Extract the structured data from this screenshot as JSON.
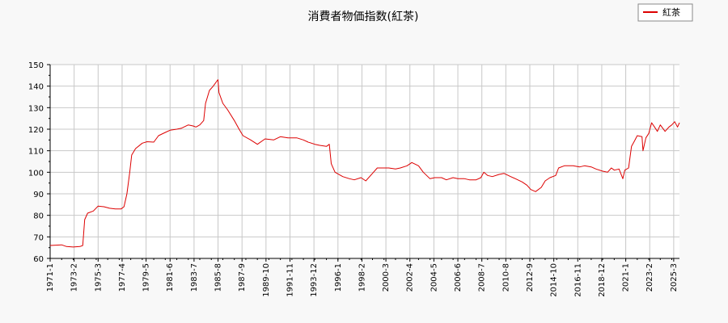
{
  "chart_data": {
    "type": "line",
    "title": "消費者物価指数(紅茶)",
    "xlabel": "",
    "ylabel": "",
    "ylim": [
      60,
      150
    ],
    "yticks": [
      60,
      70,
      80,
      90,
      100,
      110,
      120,
      130,
      140,
      150
    ],
    "xlim": [
      "1971-01",
      "2025-09"
    ],
    "xticks": [
      "1971-1",
      "1973-2",
      "1975-3",
      "1977-4",
      "1979-5",
      "1981-6",
      "1983-7",
      "1985-8",
      "1987-9",
      "1989-10",
      "1991-11",
      "1993-12",
      "1996-1",
      "1998-2",
      "2000-3",
      "2002-4",
      "2004-5",
      "2006-6",
      "2008-7",
      "2010-8",
      "2012-9",
      "2014-10",
      "2016-11",
      "2018-12",
      "2021-1",
      "2023-2",
      "2025-3"
    ],
    "grid": true,
    "legend": "top-right",
    "series": [
      {
        "name": "紅茶",
        "color": "#dd0000",
        "points": [
          [
            "1971-01",
            66.0
          ],
          [
            "1972-01",
            66.3
          ],
          [
            "1972-06",
            65.5
          ],
          [
            "1973-01",
            65.3
          ],
          [
            "1973-08",
            65.5
          ],
          [
            "1973-11",
            66.0
          ],
          [
            "1974-01",
            78.0
          ],
          [
            "1974-04",
            81.0
          ],
          [
            "1974-10",
            82.0
          ],
          [
            "1975-03",
            84.3
          ],
          [
            "1975-09",
            84.0
          ],
          [
            "1976-03",
            83.3
          ],
          [
            "1976-09",
            83.0
          ],
          [
            "1977-03",
            83.0
          ],
          [
            "1977-06",
            84.0
          ],
          [
            "1977-09",
            90.0
          ],
          [
            "1977-12",
            100.0
          ],
          [
            "1978-02",
            108.0
          ],
          [
            "1978-06",
            111.0
          ],
          [
            "1979-01",
            113.5
          ],
          [
            "1979-06",
            114.2
          ],
          [
            "1980-01",
            114.0
          ],
          [
            "1980-06",
            117.0
          ],
          [
            "1981-01",
            118.5
          ],
          [
            "1981-06",
            119.5
          ],
          [
            "1982-01",
            120.0
          ],
          [
            "1982-06",
            120.5
          ],
          [
            "1983-01",
            122.0
          ],
          [
            "1983-06",
            121.5
          ],
          [
            "1983-09",
            121.0
          ],
          [
            "1984-01",
            122.0
          ],
          [
            "1984-05",
            124.0
          ],
          [
            "1984-07",
            132.0
          ],
          [
            "1984-11",
            138.0
          ],
          [
            "1985-03",
            140.0
          ],
          [
            "1985-07",
            142.5
          ],
          [
            "1985-08",
            143.0
          ],
          [
            "1985-09",
            137.0
          ],
          [
            "1986-01",
            132.0
          ],
          [
            "1986-06",
            129.0
          ],
          [
            "1987-01",
            124.0
          ],
          [
            "1987-06",
            120.0
          ],
          [
            "1987-10",
            117.0
          ],
          [
            "1988-06",
            115.0
          ],
          [
            "1989-01",
            113.0
          ],
          [
            "1989-09",
            115.5
          ],
          [
            "1990-06",
            115.0
          ],
          [
            "1991-01",
            116.5
          ],
          [
            "1991-09",
            116.0
          ],
          [
            "1992-06",
            116.0
          ],
          [
            "1993-01",
            115.0
          ],
          [
            "1993-06",
            114.0
          ],
          [
            "1994-01",
            113.0
          ],
          [
            "1994-06",
            112.5
          ],
          [
            "1995-01",
            112.0
          ],
          [
            "1995-04",
            113.0
          ],
          [
            "1995-06",
            104.0
          ],
          [
            "1995-10",
            100.0
          ],
          [
            "1996-06",
            98.0
          ],
          [
            "1997-01",
            97.0
          ],
          [
            "1997-06",
            96.5
          ],
          [
            "1998-01",
            97.5
          ],
          [
            "1998-06",
            96.0
          ],
          [
            "1999-01",
            99.5
          ],
          [
            "1999-06",
            102.0
          ],
          [
            "2000-01",
            102.0
          ],
          [
            "2000-06",
            102.0
          ],
          [
            "2001-01",
            101.5
          ],
          [
            "2001-06",
            102.0
          ],
          [
            "2002-01",
            103.0
          ],
          [
            "2002-06",
            104.5
          ],
          [
            "2003-01",
            103.0
          ],
          [
            "2003-06",
            100.0
          ],
          [
            "2004-01",
            97.0
          ],
          [
            "2004-06",
            97.5
          ],
          [
            "2005-01",
            97.5
          ],
          [
            "2005-06",
            96.5
          ],
          [
            "2006-01",
            97.5
          ],
          [
            "2006-06",
            97.0
          ],
          [
            "2007-01",
            97.0
          ],
          [
            "2007-06",
            96.5
          ],
          [
            "2008-01",
            96.5
          ],
          [
            "2008-06",
            97.5
          ],
          [
            "2008-09",
            100.0
          ],
          [
            "2009-01",
            98.5
          ],
          [
            "2009-06",
            98.0
          ],
          [
            "2010-01",
            99.0
          ],
          [
            "2010-06",
            99.5
          ],
          [
            "2011-01",
            98.0
          ],
          [
            "2011-06",
            97.0
          ],
          [
            "2012-01",
            95.5
          ],
          [
            "2012-06",
            94.0
          ],
          [
            "2012-10",
            92.0
          ],
          [
            "2013-03",
            91.0
          ],
          [
            "2013-09",
            93.0
          ],
          [
            "2014-01",
            96.0
          ],
          [
            "2014-06",
            97.5
          ],
          [
            "2014-12",
            98.5
          ],
          [
            "2015-03",
            102.0
          ],
          [
            "2015-09",
            103.0
          ],
          [
            "2016-06",
            103.0
          ],
          [
            "2017-01",
            102.5
          ],
          [
            "2017-06",
            103.0
          ],
          [
            "2018-01",
            102.5
          ],
          [
            "2018-06",
            101.5
          ],
          [
            "2019-01",
            100.5
          ],
          [
            "2019-06",
            100.0
          ],
          [
            "2019-10",
            102.0
          ],
          [
            "2020-01",
            101.0
          ],
          [
            "2020-06",
            101.5
          ],
          [
            "2020-10",
            97.0
          ],
          [
            "2020-12",
            101.0
          ],
          [
            "2021-04",
            102.0
          ],
          [
            "2021-07",
            112.0
          ],
          [
            "2021-10",
            114.5
          ],
          [
            "2022-01",
            117.0
          ],
          [
            "2022-06",
            116.5
          ],
          [
            "2022-07",
            110.0
          ],
          [
            "2022-10",
            116.0
          ],
          [
            "2023-01",
            118.0
          ],
          [
            "2023-04",
            123.0
          ],
          [
            "2023-07",
            121.0
          ],
          [
            "2023-10",
            119.0
          ],
          [
            "2024-01",
            122.0
          ],
          [
            "2024-06",
            119.0
          ],
          [
            "2024-10",
            121.0
          ],
          [
            "2025-01",
            122.0
          ],
          [
            "2025-04",
            123.5
          ],
          [
            "2025-07",
            121.0
          ],
          [
            "2025-09",
            123.0
          ]
        ]
      }
    ]
  }
}
